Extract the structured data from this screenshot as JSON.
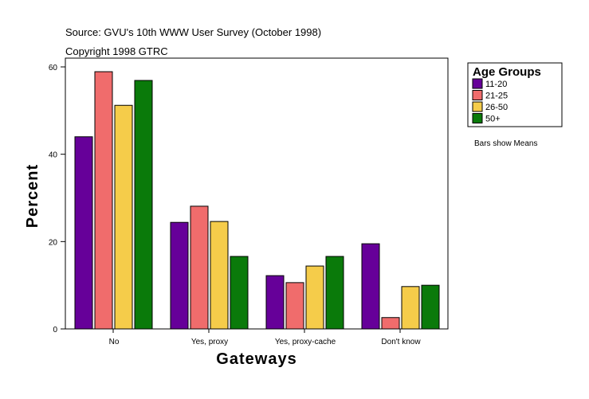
{
  "chart_data": {
    "type": "bar",
    "title": "Source: GVU's 10th WWW User Survey (October 1998)",
    "subtitle": "Copyright 1998 GTRC",
    "xlabel": "Gateways",
    "ylabel": "Percent",
    "ylim": [
      0,
      60
    ],
    "yticks": [
      0,
      20,
      40,
      60
    ],
    "categories": [
      "No",
      "Yes, proxy",
      "Yes, proxy-cache",
      "Don't know"
    ],
    "legend_title": "Age Groups",
    "legend_placement": "top-right",
    "note": "Bars show Means",
    "series": [
      {
        "name": "11-20",
        "color": "#660099",
        "values": [
          44.0,
          24.4,
          12.2,
          19.5
        ]
      },
      {
        "name": "21-25",
        "color": "#f06c6c",
        "values": [
          58.9,
          28.1,
          10.6,
          2.6
        ]
      },
      {
        "name": "26-50",
        "color": "#f5cc4a",
        "values": [
          51.2,
          24.6,
          14.4,
          9.7
        ]
      },
      {
        "name": "50+",
        "color": "#0a7a0a",
        "values": [
          56.9,
          16.6,
          16.6,
          10.0
        ]
      }
    ]
  }
}
